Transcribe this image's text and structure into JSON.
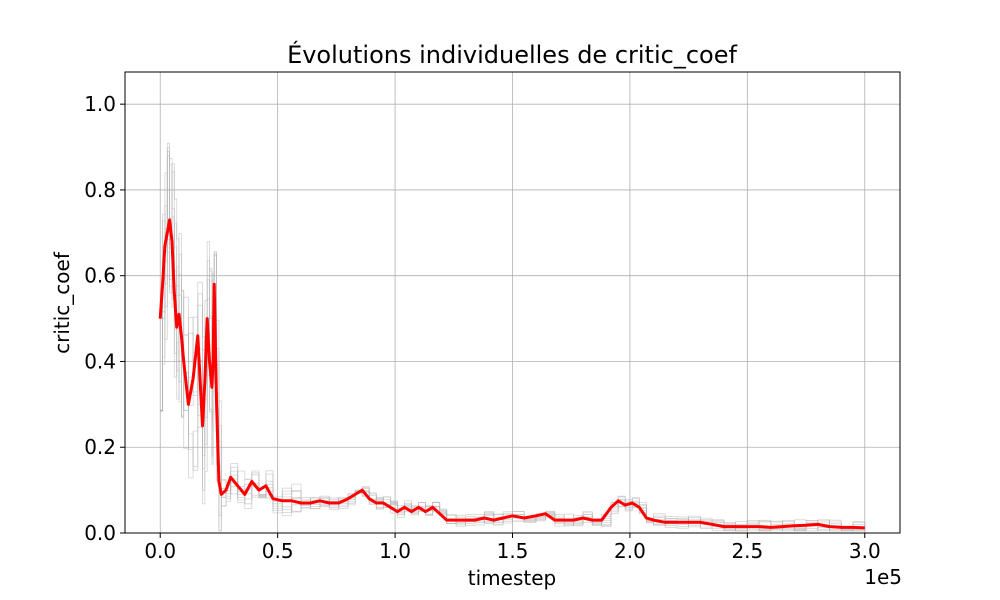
{
  "chart_data": {
    "type": "line",
    "title": "Évolutions individuelles de critic_coef",
    "xlabel": "timestep",
    "ylabel": "critic_coef",
    "x_offset_label": "1e5",
    "xlim": [
      -15000,
      315000
    ],
    "ylim": [
      0.0,
      1.075
    ],
    "x_ticks": [
      0,
      50000,
      100000,
      150000,
      200000,
      250000,
      300000
    ],
    "x_tick_labels": [
      "0.0",
      "0.5",
      "1.0",
      "1.5",
      "2.0",
      "2.5",
      "3.0"
    ],
    "y_ticks": [
      0.0,
      0.2,
      0.4,
      0.6,
      0.8,
      1.0
    ],
    "y_tick_labels": [
      "0.0",
      "0.2",
      "0.4",
      "0.6",
      "0.8",
      "1.0"
    ],
    "grid": true,
    "colors": {
      "mean": "#ff0000",
      "individual": "#b0b0b0",
      "grid": "#b0b0b0"
    },
    "series": [
      {
        "role": "mean",
        "x": [
          0,
          1000,
          2000,
          3000,
          4000,
          5000,
          6000,
          7000,
          8000,
          9000,
          10000,
          12000,
          14000,
          16000,
          18000,
          19000,
          20000,
          21000,
          22000,
          22500,
          23000,
          24000,
          25000,
          26000,
          28000,
          30000,
          33000,
          36000,
          39000,
          42000,
          45000,
          48000,
          52000,
          56000,
          60000,
          64000,
          68000,
          72000,
          76000,
          80000,
          83000,
          86000,
          89000,
          92000,
          95000,
          98000,
          101000,
          104000,
          107000,
          110000,
          113000,
          116000,
          119000,
          122000,
          126000,
          130000,
          134000,
          138000,
          142000,
          146000,
          150000,
          155000,
          160000,
          164000,
          168000,
          172000,
          176000,
          180000,
          184000,
          188000,
          192000,
          195000,
          198000,
          201000,
          204000,
          207000,
          210000,
          215000,
          220000,
          225000,
          230000,
          235000,
          240000,
          245000,
          250000,
          255000,
          260000,
          265000,
          270000,
          275000,
          280000,
          285000,
          290000,
          295000,
          300000
        ],
        "y": [
          0.5,
          0.58,
          0.67,
          0.7,
          0.73,
          0.68,
          0.56,
          0.48,
          0.51,
          0.46,
          0.4,
          0.3,
          0.36,
          0.46,
          0.25,
          0.35,
          0.5,
          0.4,
          0.34,
          0.4,
          0.58,
          0.3,
          0.12,
          0.09,
          0.1,
          0.13,
          0.11,
          0.09,
          0.12,
          0.1,
          0.11,
          0.08,
          0.075,
          0.075,
          0.07,
          0.07,
          0.075,
          0.07,
          0.07,
          0.08,
          0.09,
          0.1,
          0.08,
          0.07,
          0.07,
          0.06,
          0.05,
          0.06,
          0.05,
          0.06,
          0.05,
          0.06,
          0.045,
          0.03,
          0.03,
          0.03,
          0.03,
          0.035,
          0.03,
          0.035,
          0.04,
          0.035,
          0.04,
          0.045,
          0.03,
          0.03,
          0.03,
          0.035,
          0.03,
          0.03,
          0.06,
          0.075,
          0.065,
          0.07,
          0.06,
          0.035,
          0.03,
          0.025,
          0.025,
          0.025,
          0.025,
          0.02,
          0.015,
          0.015,
          0.015,
          0.015,
          0.013,
          0.015,
          0.017,
          0.018,
          0.02,
          0.015,
          0.013,
          0.013,
          0.012
        ]
      }
    ]
  }
}
